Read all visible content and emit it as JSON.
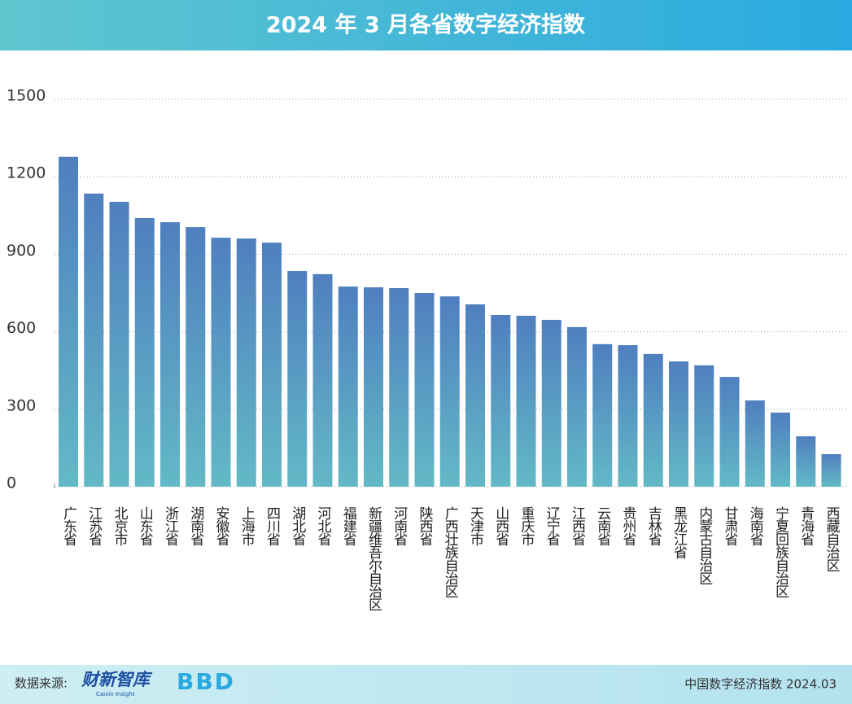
{
  "chart_data": {
    "type": "bar",
    "title": "2024 年 3 月各省数字经济指数",
    "categories": [
      "广东省",
      "江苏省",
      "北京市",
      "山东省",
      "浙江省",
      "湖南省",
      "安徽省",
      "上海市",
      "四川省",
      "湖北省",
      "河北省",
      "福建省",
      "新疆维吾尔自治区",
      "河南省",
      "陕西省",
      "广西壮族自治区",
      "天津市",
      "山西省",
      "重庆市",
      "辽宁省",
      "江西省",
      "云南省",
      "贵州省",
      "吉林省",
      "黑龙江省",
      "内蒙古自治区",
      "甘肃省",
      "海南省",
      "宁夏回族自治区",
      "青海省",
      "西藏自治区"
    ],
    "values": [
      1277,
      1135,
      1103,
      1040,
      1024,
      1005,
      964,
      961,
      945,
      835,
      823,
      775,
      772,
      769,
      750,
      737,
      706,
      665,
      662,
      646,
      618,
      552,
      548,
      514,
      485,
      470,
      425,
      334,
      287,
      195,
      126
    ],
    "color": "#4f7fbf",
    "ylim": [
      0,
      1500
    ],
    "yticks": [
      0,
      300,
      600,
      900,
      1200,
      1500
    ],
    "grid": true,
    "source_label": "数据来源:",
    "source_logos": [
      "财新智库",
      "Caixin Insight",
      "BBD"
    ],
    "footer_right": "中国数字经济指数 2024.03"
  }
}
